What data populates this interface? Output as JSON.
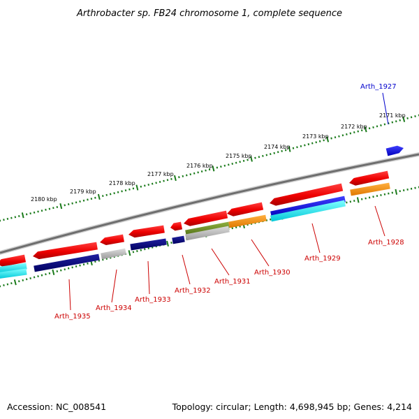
{
  "header": {
    "title": "Arthrobacter sp. FB24 chromosome 1, complete sequence"
  },
  "footer": {
    "accession": "Accession: NC_008541",
    "summary": "Topology: circular; Length: 4,698,945 bp; Genes: 4,214"
  },
  "map": {
    "ticks": [
      "2171 kbp",
      "2172 kbp",
      "2173 kbp",
      "2174 kbp",
      "2175 kbp",
      "2176 kbp",
      "2177 kbp",
      "2178 kbp",
      "2179 kbp",
      "2180 kbp"
    ],
    "genes": [
      {
        "label": "Arth_1927",
        "color": "#0000cc"
      },
      {
        "label": "Arth_1928",
        "color": "#cc0000"
      },
      {
        "label": "Arth_1929",
        "color": "#cc0000"
      },
      {
        "label": "Arth_1930",
        "color": "#cc0000"
      },
      {
        "label": "Arth_1931",
        "color": "#cc0000"
      },
      {
        "label": "Arth_1932",
        "color": "#cc0000"
      },
      {
        "label": "Arth_1933",
        "color": "#cc0000"
      },
      {
        "label": "Arth_1934",
        "color": "#cc0000"
      },
      {
        "label": "Arth_1935",
        "color": "#cc0000"
      }
    ],
    "colors": {
      "backbone": "#888888",
      "ticks": "#1a7a1a",
      "gene_red": "#ff0000",
      "gene_blue": "#0000ff",
      "cog_navy": "#000080",
      "cog_cyan": "#00ffff",
      "cog_orange": "#ff9900",
      "cog_grey": "#bbbbbb",
      "cog_olive": "#6b8e23"
    }
  }
}
